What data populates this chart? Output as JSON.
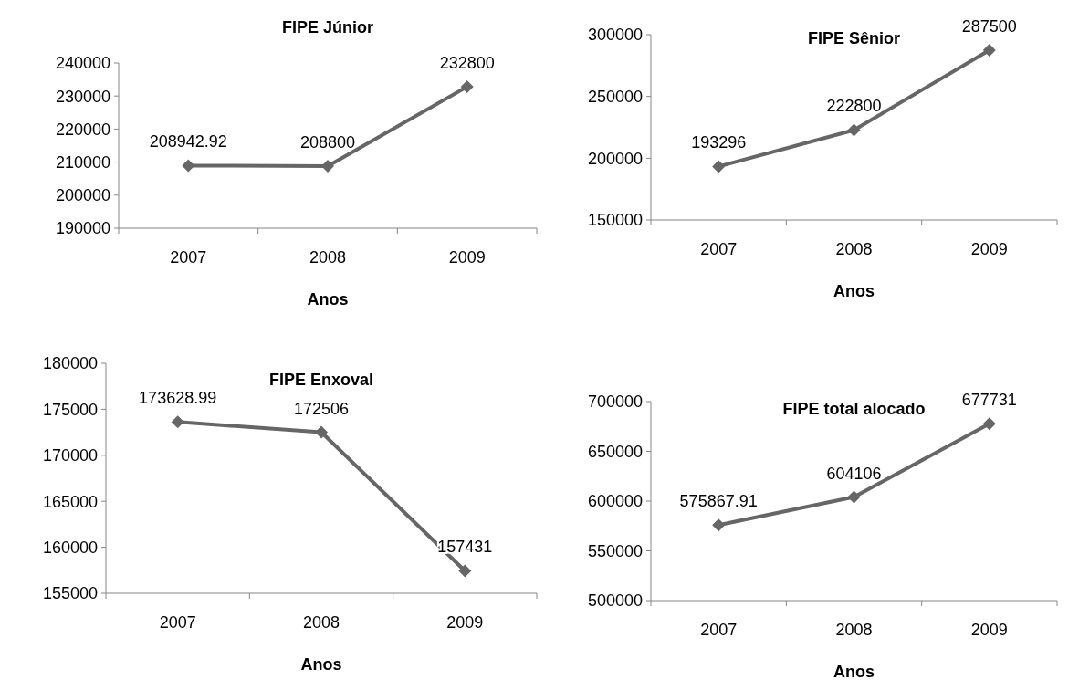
{
  "chart_data": [
    {
      "type": "line",
      "title": "FIPE Júnior",
      "xlabel": "Anos",
      "categories": [
        "2007",
        "2008",
        "2009"
      ],
      "series": [
        {
          "color": "#666666",
          "values": [
            208942.92,
            208800,
            232800
          ]
        }
      ],
      "ylim": [
        190000,
        240000
      ],
      "yticks": [
        190000,
        200000,
        210000,
        220000,
        230000,
        240000
      ],
      "marker": "diamond",
      "data_labels": true
    },
    {
      "type": "line",
      "title": "FIPE Sênior",
      "xlabel": "Anos",
      "categories": [
        "2007",
        "2008",
        "2009"
      ],
      "series": [
        {
          "color": "#666666",
          "values": [
            193296,
            222800,
            287500
          ]
        }
      ],
      "ylim": [
        150000,
        300000
      ],
      "yticks": [
        150000,
        200000,
        250000,
        300000
      ],
      "marker": "diamond",
      "data_labels": true
    },
    {
      "type": "line",
      "title": "FIPE Enxoval",
      "xlabel": "Anos",
      "categories": [
        "2007",
        "2008",
        "2009"
      ],
      "series": [
        {
          "color": "#666666",
          "values": [
            173628.99,
            172506,
            157431
          ]
        }
      ],
      "ylim": [
        155000,
        180000
      ],
      "yticks": [
        155000,
        160000,
        165000,
        170000,
        175000,
        180000
      ],
      "marker": "diamond",
      "data_labels": true
    },
    {
      "type": "line",
      "title": "FIPE total alocado",
      "xlabel": "Anos",
      "categories": [
        "2007",
        "2008",
        "2009"
      ],
      "series": [
        {
          "color": "#666666",
          "values": [
            575867.91,
            604106,
            677731
          ]
        }
      ],
      "ylim": [
        500000,
        700000
      ],
      "yticks": [
        500000,
        550000,
        600000,
        650000,
        700000
      ],
      "marker": "diamond",
      "data_labels": true
    }
  ]
}
